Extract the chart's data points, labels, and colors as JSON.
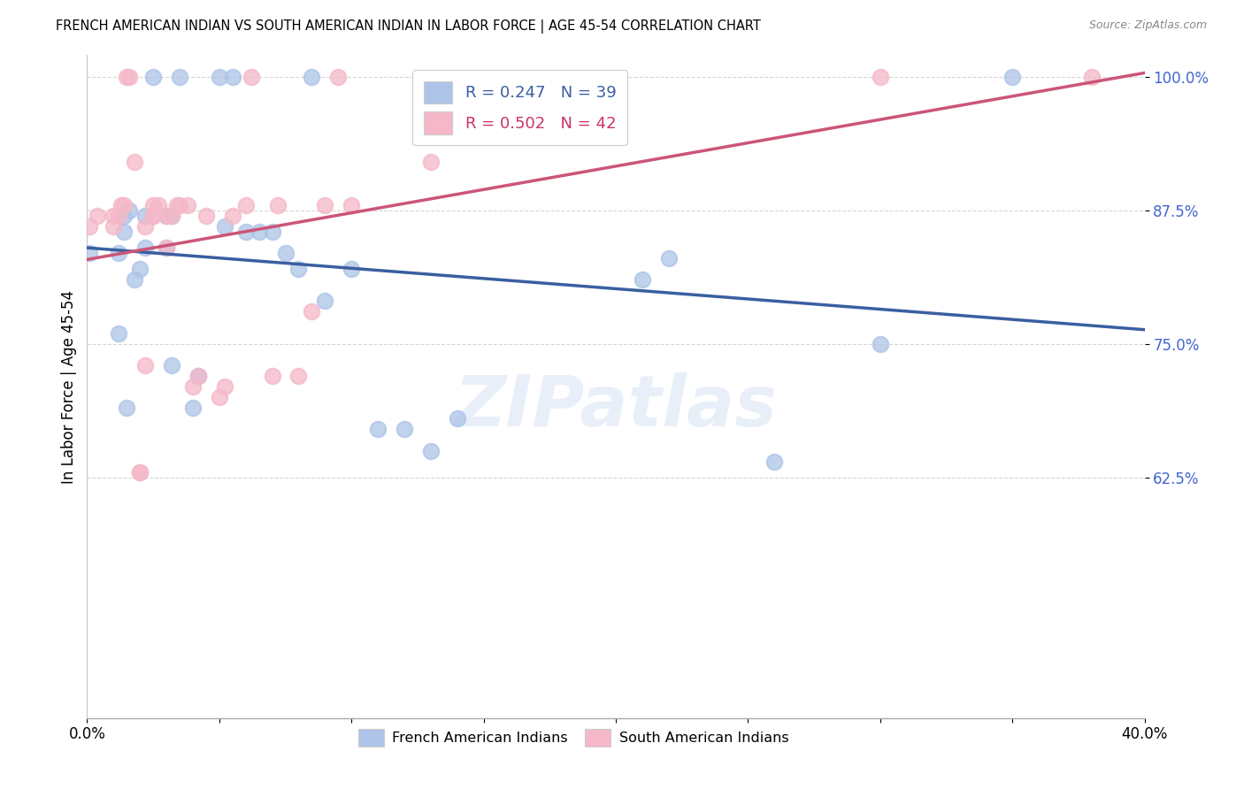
{
  "title": "FRENCH AMERICAN INDIAN VS SOUTH AMERICAN INDIAN IN LABOR FORCE | AGE 45-54 CORRELATION CHART",
  "source": "Source: ZipAtlas.com",
  "ylabel": "In Labor Force | Age 45-54",
  "xlim": [
    0.0,
    0.4
  ],
  "ylim": [
    0.4,
    1.02
  ],
  "xtick_positions": [
    0.0,
    0.05,
    0.1,
    0.15,
    0.2,
    0.25,
    0.3,
    0.35,
    0.4
  ],
  "xticklabels": [
    "0.0%",
    "",
    "",
    "",
    "",
    "",
    "",
    "",
    "40.0%"
  ],
  "ytick_positions": [
    0.625,
    0.75,
    0.875,
    1.0
  ],
  "ytick_labels": [
    "62.5%",
    "75.0%",
    "87.5%",
    "100.0%"
  ],
  "blue_R": 0.247,
  "blue_N": 39,
  "pink_R": 0.502,
  "pink_N": 42,
  "blue_color": "#adc4e8",
  "pink_color": "#f4b8c8",
  "blue_line_color": "#3a5fa0",
  "pink_line_color": "#cc5577",
  "legend_blue_text_color": "#3a5fa0",
  "legend_pink_text_color": "#cc3366",
  "watermark": "ZIPatlas",
  "blue_scatter_x": [
    0.001,
    0.012,
    0.012,
    0.014,
    0.014,
    0.016,
    0.02,
    0.022,
    0.022,
    0.025,
    0.03,
    0.03,
    0.032,
    0.032,
    0.035,
    0.04,
    0.042,
    0.05,
    0.052,
    0.055,
    0.06,
    0.065,
    0.07,
    0.075,
    0.08,
    0.085,
    0.09,
    0.1,
    0.11,
    0.12,
    0.13,
    0.14,
    0.015,
    0.018,
    0.21,
    0.22,
    0.26,
    0.3,
    0.35
  ],
  "blue_scatter_y": [
    0.835,
    0.76,
    0.835,
    0.855,
    0.87,
    0.875,
    0.82,
    0.84,
    0.87,
    1.0,
    0.84,
    0.87,
    0.73,
    0.87,
    1.0,
    0.69,
    0.72,
    1.0,
    0.86,
    1.0,
    0.855,
    0.855,
    0.855,
    0.835,
    0.82,
    1.0,
    0.79,
    0.82,
    0.67,
    0.67,
    0.65,
    0.68,
    0.69,
    0.81,
    0.81,
    0.83,
    0.64,
    0.75,
    1.0
  ],
  "pink_scatter_x": [
    0.001,
    0.004,
    0.01,
    0.01,
    0.012,
    0.013,
    0.014,
    0.015,
    0.016,
    0.018,
    0.02,
    0.022,
    0.022,
    0.025,
    0.025,
    0.025,
    0.027,
    0.03,
    0.03,
    0.032,
    0.034,
    0.035,
    0.038,
    0.04,
    0.042,
    0.045,
    0.05,
    0.052,
    0.055,
    0.06,
    0.062,
    0.07,
    0.072,
    0.08,
    0.085,
    0.09,
    0.095,
    0.1,
    0.13,
    0.3,
    0.38,
    0.02
  ],
  "pink_scatter_y": [
    0.86,
    0.87,
    0.86,
    0.87,
    0.87,
    0.88,
    0.88,
    1.0,
    1.0,
    0.92,
    0.63,
    0.73,
    0.86,
    0.87,
    0.87,
    0.88,
    0.88,
    0.84,
    0.87,
    0.87,
    0.88,
    0.88,
    0.88,
    0.71,
    0.72,
    0.87,
    0.7,
    0.71,
    0.87,
    0.88,
    1.0,
    0.72,
    0.88,
    0.72,
    0.78,
    0.88,
    1.0,
    0.88,
    0.92,
    1.0,
    1.0,
    0.63
  ]
}
